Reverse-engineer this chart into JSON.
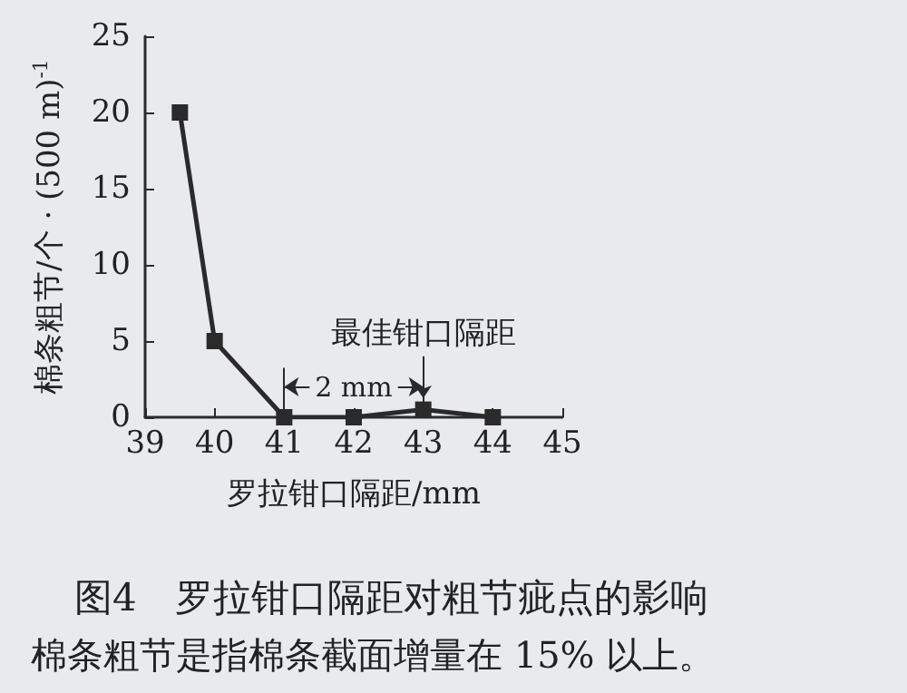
{
  "chart_data": {
    "type": "line",
    "title": "图4　罗拉钳口隔距对粗节疵点的影响",
    "xlabel": "罗拉钳口隔距/mm",
    "ylabel": "棉条粗节/个 · (500 m)$^{-1}$",
    "x": [
      39.5,
      40,
      41,
      42,
      43,
      44
    ],
    "series": [
      {
        "color": "#2a2a2a",
        "values": [
          20,
          5,
          0,
          0,
          0.5,
          0
        ]
      }
    ],
    "xlim": [
      39,
      45
    ],
    "xticks": [
      39,
      40,
      41,
      42,
      43,
      44,
      45
    ],
    "ylim": [
      0,
      25
    ],
    "yticks": [
      0,
      5,
      10,
      15,
      20,
      25
    ],
    "ref_lines": [
      {
        "axis": "x",
        "value": 41
      },
      {
        "axis": "x",
        "value": 43
      }
    ],
    "annotations": [
      "2 mm",
      {
        "text": "最佳钳口隔距",
        "x": 43,
        "y": 0.5
      },
      "棉条粗节是指棉条截面增量在 15% 以上。"
    ],
    "marker": "square",
    "line_style": "solid"
  }
}
